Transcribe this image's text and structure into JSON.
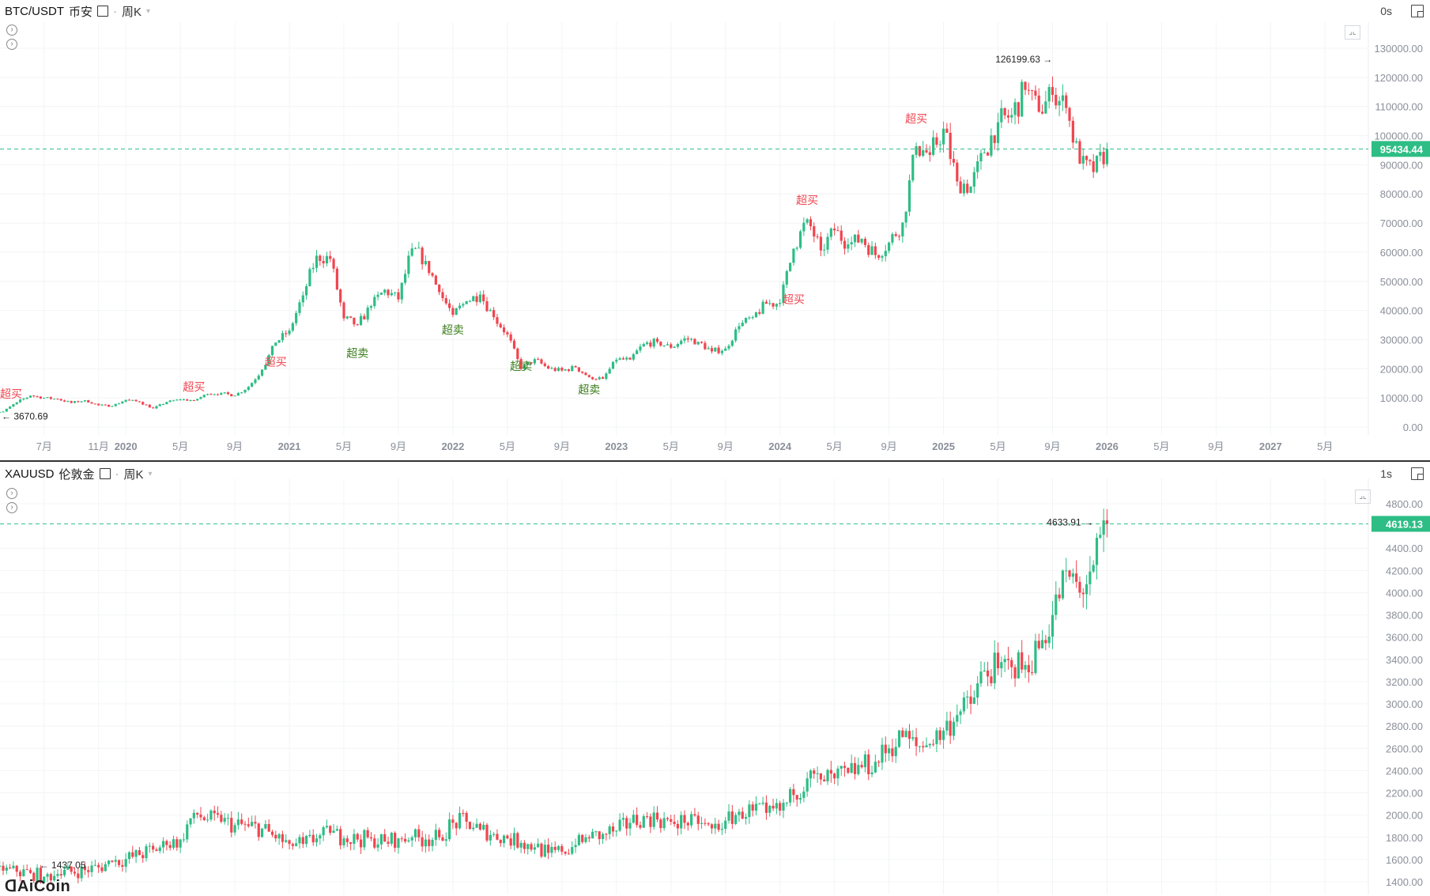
{
  "top_panel": {
    "symbol": "BTC/USDT",
    "exchange": "币安",
    "period": "周K",
    "countdown": "0s"
  },
  "bottom_panel": {
    "symbol": "XAUUSD",
    "exchange": "伦敦金",
    "period": "周K",
    "countdown": "1s"
  },
  "watermark": "AiCoin",
  "colors": {
    "up": "#2ebd85",
    "down": "#f0454f",
    "price_line": "#2ebd85",
    "grid": "#f3f4f6",
    "axis_text": "#8a8f99"
  },
  "chart_data": [
    {
      "type": "candlestick",
      "interval": "weekly",
      "series_resolution_shown": "monthly closes (approx.)",
      "start": "2019-04",
      "closes": [
        5300,
        8500,
        10800,
        10000,
        9600,
        8300,
        9200,
        7500,
        7200,
        9350,
        8600,
        6400,
        8600,
        9450,
        9150,
        11350,
        11650,
        10800,
        13800,
        19700,
        29000,
        33100,
        45200,
        58800,
        57700,
        37300,
        35000,
        41500,
        47100,
        43800,
        61300,
        57000,
        46300,
        38500,
        43200,
        45500,
        37700,
        31800,
        19900,
        23300,
        20050,
        19400,
        20500,
        17150,
        16550,
        23100,
        23150,
        28500,
        29250,
        27200,
        30450,
        29250,
        25950,
        26950,
        34650,
        37700,
        42300,
        42600,
        61200,
        71300,
        60600,
        67500,
        62700,
        64600,
        59000,
        63300,
        70200,
        96400,
        93400,
        102400,
        84300,
        82500,
        94200,
        104600,
        107100,
        115700,
        108200,
        114000,
        109500,
        90400,
        87500,
        95434.44
      ],
      "ylim": [
        0,
        130000
      ],
      "yticks": [
        "0.00",
        "10000.00",
        "20000.00",
        "30000.00",
        "40000.00",
        "50000.00",
        "60000.00",
        "70000.00",
        "80000.00",
        "90000.00",
        "100000.00",
        "110000.00",
        "120000.00",
        "130000.00"
      ],
      "xticks": [
        {
          "label": "7月",
          "date": "2019-07"
        },
        {
          "label": "11月",
          "date": "2019-11"
        },
        {
          "label": "2020",
          "date": "2020-01"
        },
        {
          "label": "5月",
          "date": "2020-05"
        },
        {
          "label": "9月",
          "date": "2020-09"
        },
        {
          "label": "2021",
          "date": "2021-01"
        },
        {
          "label": "5月",
          "date": "2021-05"
        },
        {
          "label": "9月",
          "date": "2021-09"
        },
        {
          "label": "2022",
          "date": "2022-01"
        },
        {
          "label": "5月",
          "date": "2022-05"
        },
        {
          "label": "9月",
          "date": "2022-09"
        },
        {
          "label": "2023",
          "date": "2023-01"
        },
        {
          "label": "5月",
          "date": "2023-05"
        },
        {
          "label": "9月",
          "date": "2023-09"
        },
        {
          "label": "2024",
          "date": "2024-01"
        },
        {
          "label": "5月",
          "date": "2024-05"
        },
        {
          "label": "9月",
          "date": "2024-09"
        },
        {
          "label": "2025",
          "date": "2025-01"
        },
        {
          "label": "5月",
          "date": "2025-05"
        },
        {
          "label": "9月",
          "date": "2025-09"
        },
        {
          "label": "2026",
          "date": "2026-01"
        },
        {
          "label": "5月",
          "date": "2026-05"
        },
        {
          "label": "9月",
          "date": "2026-09"
        },
        {
          "label": "2027",
          "date": "2027-01"
        },
        {
          "label": "5月",
          "date": "2027-05"
        }
      ],
      "last_price": "95434.44",
      "last_value": 95434.44,
      "max_label": {
        "text": "126199.63",
        "value": 126199.63,
        "date": "2025-10"
      },
      "min_label": {
        "text": "3670.69",
        "value": 3670.69,
        "date": "2019-04"
      },
      "annotations": [
        {
          "text": "超买",
          "kind": "overbought",
          "date": "2019-04",
          "value": 10000
        },
        {
          "text": "超买",
          "kind": "overbought",
          "date": "2020-06",
          "value": 12500
        },
        {
          "text": "超买",
          "kind": "overbought",
          "date": "2020-12",
          "value": 21000
        },
        {
          "text": "超卖",
          "kind": "oversold",
          "date": "2021-06",
          "value": 24000
        },
        {
          "text": "超卖",
          "kind": "oversold",
          "date": "2022-01",
          "value": 32000
        },
        {
          "text": "超卖",
          "kind": "oversold",
          "date": "2022-06",
          "value": 19500
        },
        {
          "text": "超卖",
          "kind": "oversold",
          "date": "2022-11",
          "value": 11500
        },
        {
          "text": "超买",
          "kind": "overbought",
          "date": "2024-02",
          "value": 42500
        },
        {
          "text": "超买",
          "kind": "overbought",
          "date": "2024-03",
          "value": 76500
        },
        {
          "text": "超买",
          "kind": "overbought",
          "date": "2024-11",
          "value": 104500
        }
      ]
    },
    {
      "type": "candlestick",
      "interval": "weekly",
      "series_resolution_shown": "monthly closes (approx.)",
      "start": "2019-04",
      "closes": [
        1500,
        1490,
        1480,
        1445,
        1470,
        1490,
        1505,
        1530,
        1580,
        1605,
        1640,
        1690,
        1730,
        1780,
        2020,
        1960,
        1940,
        1910,
        1900,
        1880,
        1790,
        1740,
        1740,
        1790,
        1840,
        1790,
        1780,
        1790,
        1760,
        1790,
        1800,
        1780,
        1800,
        1930,
        1940,
        1870,
        1830,
        1790,
        1750,
        1710,
        1660,
        1670,
        1730,
        1790,
        1830,
        1860,
        1930,
        1990,
        1960,
        1940,
        1930,
        1920,
        1880,
        1950,
        2030,
        2040,
        2020,
        2040,
        2180,
        2330,
        2320,
        2330,
        2380,
        2430,
        2480,
        2600,
        2700,
        2620,
        2640,
        2760,
        2900,
        3000,
        3300,
        3320,
        3330,
        3350,
        3500,
        3800,
        4200,
        4000,
        4250,
        4619.13
      ],
      "ylim": [
        1400,
        4800
      ],
      "yticks": [
        "1400.00",
        "1600.00",
        "1800.00",
        "2000.00",
        "2200.00",
        "2400.00",
        "2600.00",
        "2800.00",
        "3000.00",
        "3200.00",
        "3400.00",
        "3600.00",
        "3800.00",
        "4000.00",
        "4200.00",
        "4400.00",
        "4800.00"
      ],
      "last_price": "4619.13",
      "last_value": 4619.13,
      "max_label": {
        "text": "4633.91",
        "value": 4633.91,
        "date": "2026-01"
      },
      "min_label": {
        "text": "1437.05",
        "value": 1437.05,
        "date": "2019-07"
      }
    }
  ]
}
